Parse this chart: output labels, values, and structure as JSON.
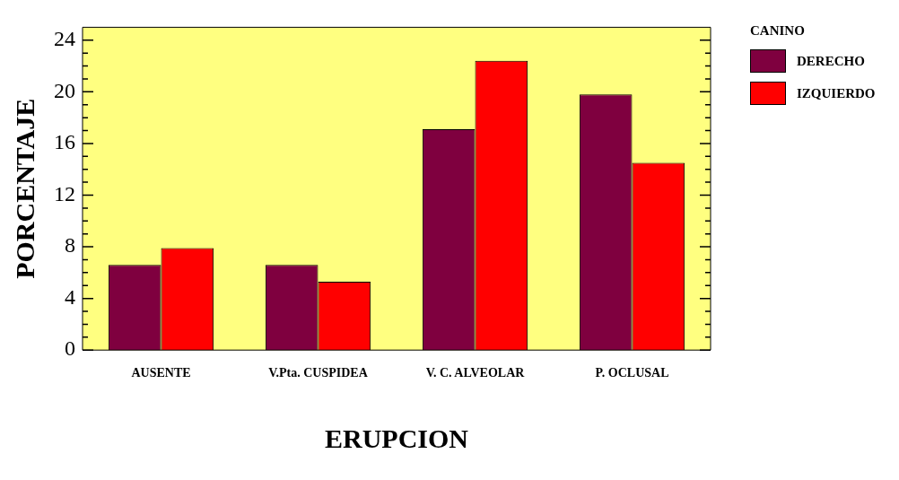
{
  "chart_data": {
    "type": "bar",
    "xlabel": "ERUPCION",
    "ylabel": "PORCENTAJE",
    "legend_title": "CANINO",
    "legend": "top right",
    "categories": [
      "AUSENTE",
      "V.Pta. CUSPIDEA",
      "V. C. ALVEOLAR",
      "P. OCLUSAL"
    ],
    "series": [
      {
        "name": "DERECHO",
        "color": "#7f003f",
        "values": [
          6.6,
          6.6,
          17.1,
          19.8
        ]
      },
      {
        "name": "IZQUIERDO",
        "color": "#ff0000",
        "values": [
          7.9,
          5.3,
          22.4,
          14.5
        ]
      }
    ],
    "ylim": [
      0,
      25
    ],
    "yticks": [
      0,
      {
        "value": 1,
        "label": null
      },
      {
        "value": 2,
        "label": null
      },
      {
        "value": 3,
        "label": null
      },
      4,
      {
        "value": 5,
        "label": null
      },
      {
        "value": 6,
        "label": null
      },
      {
        "value": 7,
        "label": null
      },
      8,
      {
        "value": 9,
        "label": null
      },
      {
        "value": 10,
        "label": null
      },
      {
        "value": 11,
        "label": null
      },
      12,
      {
        "value": 13,
        "label": null
      },
      {
        "value": 14,
        "label": null
      },
      {
        "value": 15,
        "label": null
      },
      16,
      {
        "value": 17,
        "label": null
      },
      {
        "value": 18,
        "label": null
      },
      {
        "value": 19,
        "label": null
      },
      20,
      {
        "value": 21,
        "label": null
      },
      {
        "value": 22,
        "label": null
      },
      {
        "value": 23,
        "label": null
      },
      24
    ],
    "grid": false
  }
}
